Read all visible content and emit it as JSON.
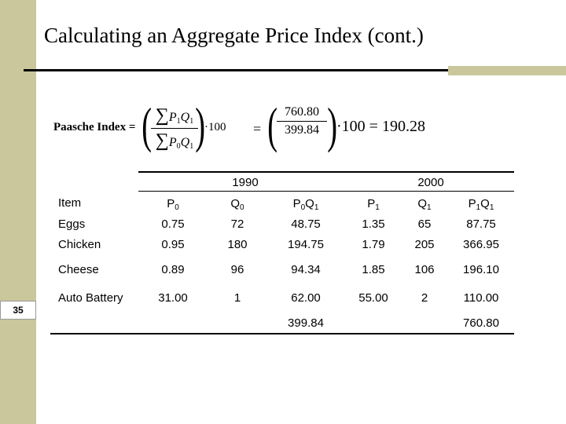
{
  "title": "Calculating an Aggregate Price Index (cont.)",
  "slide_number": "35",
  "formula": {
    "label": "Paasche Index =",
    "sum_symbol": "∑",
    "numerator_1": "P",
    "numerator_1_sub": "1",
    "numerator_2": "Q",
    "numerator_2_sub": "1",
    "denominator_1": "P",
    "denominator_1_sub": "0",
    "denominator_2": "Q",
    "denominator_2_sub": "1",
    "times_100": "·100",
    "equals": "=",
    "value_numerator": "760.80",
    "value_denominator": "399.84",
    "result": "·100 = 190.28"
  },
  "table": {
    "year_headers": [
      "1990",
      "2000"
    ],
    "col_headers": [
      {
        "main": "Item",
        "sub": ""
      },
      {
        "main": "P",
        "sub": "0"
      },
      {
        "main": "Q",
        "sub": "0"
      },
      {
        "main": "P",
        "sub": "0",
        "main2": "Q",
        "sub2": "1"
      },
      {
        "main": "P",
        "sub": "1"
      },
      {
        "main": "Q",
        "sub": "1"
      },
      {
        "main": "P",
        "sub": "1",
        "main2": "Q",
        "sub2": "1"
      }
    ],
    "rows": [
      [
        "Eggs",
        "0.75",
        "72",
        "48.75",
        "1.35",
        "65",
        "87.75"
      ],
      [
        "Chicken",
        "0.95",
        "180",
        "194.75",
        "1.79",
        "205",
        "366.95"
      ],
      [
        "Cheese",
        "0.89",
        "96",
        "94.34",
        "1.85",
        "106",
        "196.10"
      ],
      [
        "Auto Battery",
        "31.00",
        "1",
        "62.00",
        "55.00",
        "2",
        "110.00"
      ]
    ],
    "totals": {
      "p0q1": "399.84",
      "p1q1": "760.80"
    }
  }
}
